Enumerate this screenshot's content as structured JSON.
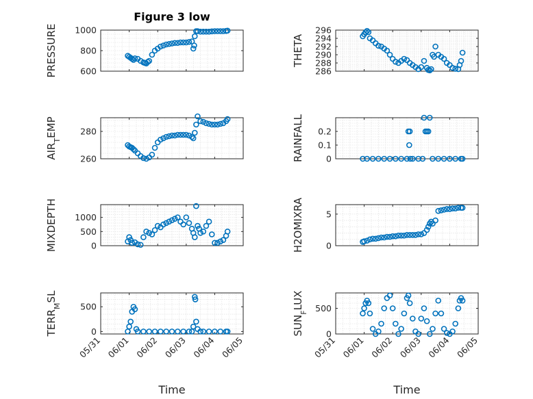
{
  "title": "Figure 3 low",
  "x_label": "Time",
  "colors": {
    "marker": "#0072BD",
    "axes": "#262626",
    "grid": "#dcdcdc"
  },
  "chart_data": [
    {
      "type": "scatter",
      "ylabel": "PRESSURE",
      "ylim": [
        600,
        1000
      ],
      "yticks": [
        600,
        800,
        1000
      ],
      "xlim": [
        "05/31",
        "06/05"
      ],
      "grid": true,
      "x": [
        0.95,
        1.0,
        1.05,
        1.1,
        1.15,
        1.2,
        1.3,
        1.4,
        1.5,
        1.55,
        1.6,
        1.65,
        1.7,
        1.8,
        1.9,
        2.0,
        2.1,
        2.2,
        2.3,
        2.4,
        2.5,
        2.6,
        2.7,
        2.8,
        2.9,
        3.0,
        3.1,
        3.2,
        3.25,
        3.28,
        3.3,
        3.35,
        3.4,
        3.5,
        3.6,
        3.7,
        3.8,
        3.9,
        4.0,
        4.1,
        4.2,
        4.3,
        4.4,
        4.45
      ],
      "y": [
        750,
        740,
        730,
        720,
        710,
        725,
        720,
        700,
        685,
        680,
        675,
        690,
        700,
        760,
        800,
        820,
        840,
        850,
        860,
        865,
        870,
        875,
        875,
        880,
        880,
        880,
        885,
        890,
        820,
        850,
        940,
        990,
        990,
        985,
        985,
        985,
        985,
        988,
        990,
        990,
        990,
        990,
        992,
        995
      ]
    },
    {
      "type": "scatter",
      "ylabel": "THETA",
      "ylim": [
        286,
        296
      ],
      "yticks": [
        286,
        288,
        290,
        292,
        294,
        296
      ],
      "xlim": [
        "05/31",
        "06/05"
      ],
      "grid": true,
      "x": [
        0.95,
        1.0,
        1.05,
        1.1,
        1.15,
        1.2,
        1.3,
        1.4,
        1.5,
        1.6,
        1.7,
        1.8,
        1.9,
        2.0,
        2.1,
        2.2,
        2.3,
        2.4,
        2.5,
        2.6,
        2.7,
        2.8,
        2.9,
        3.0,
        3.1,
        3.2,
        3.25,
        3.3,
        3.35,
        3.4,
        3.45,
        3.5,
        3.6,
        3.7,
        3.8,
        3.9,
        4.0,
        4.1,
        4.2,
        4.3,
        4.35,
        4.4,
        4.45
      ],
      "y": [
        294.5,
        295.0,
        295.5,
        295.8,
        295.5,
        294.0,
        293.5,
        292.8,
        292.2,
        292.0,
        291.5,
        291.0,
        290.0,
        289.0,
        288.3,
        288.0,
        288.5,
        289.0,
        288.7,
        288.0,
        287.5,
        287.0,
        286.5,
        287.0,
        288.5,
        286.8,
        286.3,
        286.2,
        286.5,
        290.0,
        289.5,
        292.0,
        290.0,
        289.5,
        289.0,
        288.0,
        287.5,
        286.8,
        286.6,
        286.5,
        287.5,
        288.5,
        290.5
      ]
    },
    {
      "type": "scatter",
      "ylabel": "AIR_TEMP",
      "ylim": [
        260,
        290
      ],
      "yticks": [
        260,
        280
      ],
      "xlim": [
        "05/31",
        "06/05"
      ],
      "grid": true,
      "x": [
        0.95,
        1.0,
        1.05,
        1.1,
        1.15,
        1.2,
        1.3,
        1.4,
        1.5,
        1.6,
        1.7,
        1.8,
        1.9,
        2.0,
        2.1,
        2.2,
        2.3,
        2.4,
        2.5,
        2.6,
        2.7,
        2.8,
        2.9,
        3.0,
        3.1,
        3.2,
        3.25,
        3.3,
        3.35,
        3.4,
        3.5,
        3.6,
        3.7,
        3.8,
        3.9,
        4.0,
        4.1,
        4.2,
        4.3,
        4.4,
        4.45
      ],
      "y": [
        270,
        269,
        268.5,
        268,
        267,
        266,
        264,
        262,
        260.5,
        260,
        261,
        263,
        268,
        272,
        274,
        275,
        276,
        276.5,
        277,
        277,
        277.5,
        277.5,
        277.5,
        277.5,
        277,
        276,
        275,
        279,
        285,
        291,
        287.5,
        287,
        286,
        285.5,
        285,
        285,
        285,
        285.5,
        286,
        287.5,
        289
      ]
    },
    {
      "type": "scatter",
      "ylabel": "RAINFALL",
      "ylim": [
        0,
        0.3
      ],
      "yticks": [
        0,
        0.1,
        0.2
      ],
      "xlim": [
        "05/31",
        "06/05"
      ],
      "grid": true,
      "x": [
        0.95,
        1.1,
        1.3,
        1.5,
        1.7,
        1.9,
        2.1,
        2.3,
        2.5,
        2.55,
        2.58,
        2.6,
        2.62,
        2.7,
        2.9,
        3.05,
        3.1,
        3.15,
        3.2,
        3.25,
        3.3,
        3.4,
        3.6,
        3.8,
        4.0,
        4.2,
        4.4,
        4.45
      ],
      "y": [
        0,
        0,
        0,
        0,
        0,
        0,
        0,
        0,
        0,
        0.2,
        0.1,
        0.2,
        0,
        0,
        0,
        0,
        0.3,
        0.2,
        0.2,
        0.2,
        0.3,
        0,
        0,
        0,
        0,
        0,
        0,
        0
      ]
    },
    {
      "type": "scatter",
      "ylabel": "MIXDEPTH",
      "ylim": [
        0,
        1450
      ],
      "yticks": [
        0,
        500,
        1000
      ],
      "xlim": [
        "05/31",
        "06/05"
      ],
      "grid": true,
      "x": [
        0.95,
        1.0,
        1.05,
        1.1,
        1.2,
        1.3,
        1.4,
        1.5,
        1.6,
        1.7,
        1.8,
        1.9,
        2.0,
        2.1,
        2.2,
        2.3,
        2.4,
        2.5,
        2.6,
        2.7,
        2.8,
        2.9,
        3.0,
        3.1,
        3.2,
        3.25,
        3.3,
        3.35,
        3.4,
        3.45,
        3.5,
        3.6,
        3.7,
        3.8,
        3.9,
        4.0,
        4.1,
        4.2,
        4.3,
        4.4,
        4.45
      ],
      "y": [
        150,
        300,
        200,
        100,
        120,
        50,
        30,
        300,
        500,
        450,
        400,
        550,
        700,
        650,
        750,
        800,
        850,
        900,
        950,
        1000,
        850,
        750,
        1000,
        800,
        600,
        450,
        300,
        1400,
        700,
        600,
        450,
        500,
        700,
        850,
        400,
        100,
        100,
        150,
        200,
        350,
        500
      ]
    },
    {
      "type": "scatter",
      "ylabel": "H2OMIXRA",
      "ylim": [
        0,
        6.5
      ],
      "yticks": [
        0,
        5
      ],
      "xlim": [
        "05/31",
        "06/05"
      ],
      "grid": true,
      "x": [
        0.95,
        1.0,
        1.1,
        1.2,
        1.3,
        1.4,
        1.5,
        1.6,
        1.7,
        1.8,
        1.9,
        2.0,
        2.1,
        2.2,
        2.3,
        2.4,
        2.5,
        2.6,
        2.7,
        2.8,
        2.9,
        3.0,
        3.1,
        3.2,
        3.25,
        3.3,
        3.35,
        3.4,
        3.5,
        3.6,
        3.7,
        3.8,
        3.9,
        4.0,
        4.1,
        4.2,
        4.3,
        4.4,
        4.45
      ],
      "y": [
        0.6,
        0.7,
        0.8,
        1.0,
        1.1,
        1.1,
        1.2,
        1.3,
        1.3,
        1.4,
        1.4,
        1.5,
        1.5,
        1.6,
        1.6,
        1.6,
        1.7,
        1.7,
        1.7,
        1.7,
        1.8,
        1.8,
        2.0,
        2.5,
        3.0,
        3.5,
        3.8,
        3.5,
        4.0,
        5.5,
        5.6,
        5.7,
        5.8,
        5.8,
        5.9,
        5.9,
        6.0,
        6.0,
        6.0
      ]
    },
    {
      "type": "scatter",
      "ylabel": "TERR_MSL",
      "ylim": [
        -50,
        780
      ],
      "yticks": [
        0,
        500
      ],
      "xlim": [
        "05/31",
        "06/05"
      ],
      "grid": true,
      "x": [
        0.95,
        1.0,
        1.05,
        1.1,
        1.15,
        1.2,
        1.25,
        1.3,
        1.5,
        1.7,
        1.9,
        2.1,
        2.3,
        2.5,
        2.7,
        2.9,
        3.1,
        3.2,
        3.25,
        3.3,
        3.32,
        3.35,
        3.4,
        3.5,
        3.6,
        3.8,
        4.0,
        4.2,
        4.4,
        4.45
      ],
      "y": [
        0,
        100,
        200,
        400,
        500,
        450,
        50,
        0,
        0,
        0,
        0,
        0,
        0,
        0,
        0,
        0,
        0,
        0,
        100,
        700,
        650,
        200,
        50,
        0,
        0,
        0,
        0,
        0,
        0,
        0
      ]
    },
    {
      "type": "scatter",
      "ylabel": "SUN_FLUX",
      "ylim": [
        0,
        800
      ],
      "yticks": [
        0,
        500
      ],
      "xlim": [
        "05/31",
        "06/05"
      ],
      "grid": true,
      "x": [
        0.95,
        1.0,
        1.05,
        1.1,
        1.15,
        1.2,
        1.3,
        1.4,
        1.5,
        1.6,
        1.7,
        1.8,
        1.9,
        2.0,
        2.1,
        2.2,
        2.3,
        2.4,
        2.5,
        2.55,
        2.6,
        2.7,
        2.8,
        2.9,
        3.0,
        3.1,
        3.2,
        3.3,
        3.4,
        3.5,
        3.6,
        3.7,
        3.8,
        3.9,
        4.0,
        4.1,
        4.2,
        4.3,
        4.35,
        4.4,
        4.45
      ],
      "y": [
        400,
        500,
        600,
        650,
        600,
        400,
        100,
        0,
        50,
        200,
        500,
        700,
        750,
        500,
        200,
        0,
        100,
        400,
        700,
        750,
        600,
        300,
        50,
        0,
        300,
        500,
        250,
        0,
        100,
        400,
        650,
        400,
        100,
        20,
        0,
        50,
        200,
        500,
        650,
        700,
        650
      ]
    }
  ]
}
